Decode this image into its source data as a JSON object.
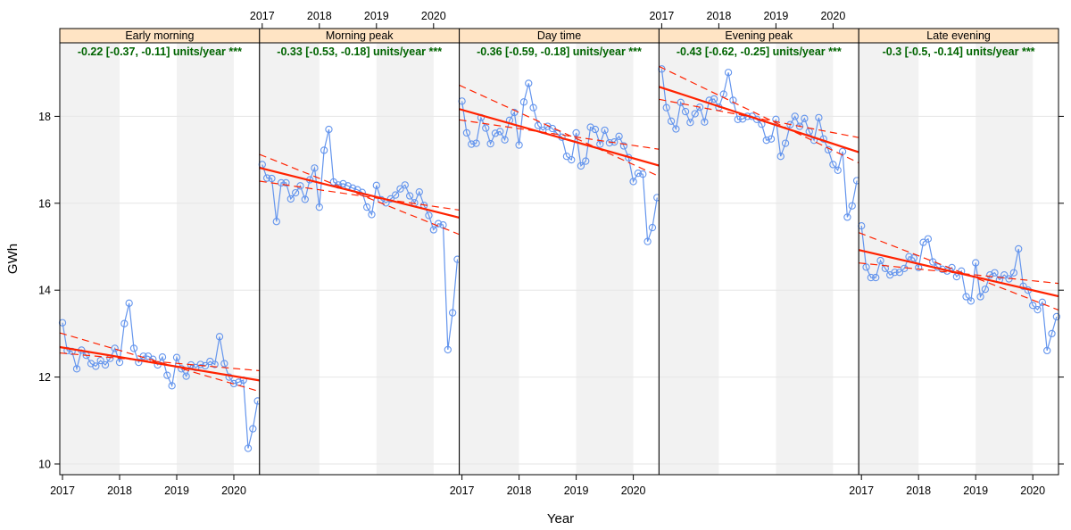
{
  "chart_data": {
    "type": "line",
    "xlabel": "Year",
    "ylabel": "GWh",
    "ylim": [
      9.75,
      19.7
    ],
    "yticks": [
      10,
      12,
      14,
      16,
      18
    ],
    "ytick_labels": [
      "10",
      "12",
      "14",
      "16",
      "18"
    ],
    "xticks": [
      2017,
      2018,
      2019,
      2020
    ],
    "xtick_labels": [
      "2017",
      "2018",
      "2019",
      "2020"
    ],
    "x_start": "2017-01",
    "frequency": "monthly",
    "grid": true,
    "colors": {
      "series": "#6495ED",
      "fit": "#FF2200",
      "strip": "#FFE4C4",
      "annotation": "#006400",
      "band": "#F2F2F2"
    },
    "panels": [
      {
        "name": "Early morning",
        "annotation": "-0.22 [-0.37, -0.11] units/year ***",
        "values": [
          13.25,
          12.61,
          12.59,
          12.19,
          12.62,
          12.5,
          12.31,
          12.25,
          12.38,
          12.28,
          12.43,
          12.66,
          12.34,
          13.23,
          13.7,
          12.66,
          12.34,
          12.48,
          12.48,
          12.41,
          12.28,
          12.46,
          12.04,
          11.8,
          12.45,
          12.19,
          12.02,
          12.28,
          12.22,
          12.29,
          12.26,
          12.36,
          12.29,
          12.93,
          12.31,
          12.0,
          11.85,
          11.88,
          11.93,
          10.36,
          10.81,
          11.45
        ],
        "fit": [
          12.68,
          11.93
        ],
        "ci_a": [
          13.0,
          11.68
        ],
        "ci_b": [
          12.55,
          12.15
        ]
      },
      {
        "name": "Morning peak",
        "annotation": "-0.33 [-0.53, -0.18] units/year ***",
        "values": [
          16.89,
          16.58,
          16.57,
          15.58,
          16.47,
          16.47,
          16.1,
          16.24,
          16.4,
          16.09,
          16.54,
          16.81,
          15.91,
          17.22,
          17.7,
          16.49,
          16.42,
          16.45,
          16.4,
          16.35,
          16.31,
          16.25,
          15.91,
          15.74,
          16.41,
          16.08,
          16.01,
          16.1,
          16.19,
          16.33,
          16.42,
          16.17,
          16.01,
          16.26,
          15.95,
          15.72,
          15.39,
          15.53,
          15.5,
          12.63,
          13.48,
          14.71
        ],
        "fit": [
          16.8,
          15.68
        ],
        "ci_a": [
          17.1,
          15.3
        ],
        "ci_b": [
          16.5,
          15.85
        ]
      },
      {
        "name": "Day time",
        "annotation": "-0.36 [-0.59, -0.18] units/year ***",
        "values": [
          18.35,
          17.62,
          17.36,
          17.38,
          17.97,
          17.73,
          17.37,
          17.61,
          17.65,
          17.46,
          17.91,
          18.09,
          17.34,
          18.33,
          18.76,
          18.2,
          17.79,
          17.68,
          17.77,
          17.72,
          17.6,
          17.52,
          17.08,
          17.0,
          17.62,
          16.86,
          16.97,
          17.75,
          17.7,
          17.36,
          17.68,
          17.39,
          17.41,
          17.54,
          17.32,
          17.05,
          16.5,
          16.69,
          16.67,
          15.12,
          15.44,
          16.13
        ],
        "fit": [
          18.15,
          16.88
        ],
        "ci_a": [
          18.69,
          16.64
        ],
        "ci_b": [
          17.91,
          17.25
        ]
      },
      {
        "name": "Evening peak",
        "annotation": "-0.43 [-0.62, -0.25] units/year ***",
        "values": [
          19.09,
          18.2,
          17.89,
          17.71,
          18.32,
          18.11,
          17.86,
          18.06,
          18.21,
          17.87,
          18.37,
          18.4,
          18.21,
          18.51,
          19.01,
          18.37,
          17.93,
          17.94,
          18.0,
          18.0,
          17.93,
          17.82,
          17.45,
          17.48,
          17.93,
          17.08,
          17.38,
          17.81,
          18.0,
          17.77,
          17.95,
          17.65,
          17.45,
          17.97,
          17.48,
          17.23,
          16.89,
          16.76,
          17.19,
          15.68,
          15.94,
          16.52
        ],
        "fit": [
          18.66,
          17.19
        ],
        "ci_a": [
          19.12,
          16.95
        ],
        "ci_b": [
          18.38,
          17.52
        ]
      },
      {
        "name": "Late evening",
        "annotation": "-0.3 [-0.5, -0.14] units/year ***",
        "values": [
          15.48,
          14.53,
          14.29,
          14.29,
          14.68,
          14.5,
          14.35,
          14.41,
          14.41,
          14.5,
          14.77,
          14.74,
          14.52,
          15.1,
          15.18,
          14.65,
          14.53,
          14.48,
          14.44,
          14.52,
          14.31,
          14.44,
          13.85,
          13.75,
          14.63,
          13.85,
          14.02,
          14.35,
          14.4,
          14.24,
          14.35,
          14.26,
          14.4,
          14.95,
          14.09,
          14.0,
          13.65,
          13.55,
          13.72,
          12.61,
          13.0,
          13.39
        ],
        "fit": [
          14.91,
          13.87
        ],
        "ci_a": [
          15.3,
          13.56
        ],
        "ci_b": [
          14.62,
          14.16
        ]
      }
    ]
  }
}
